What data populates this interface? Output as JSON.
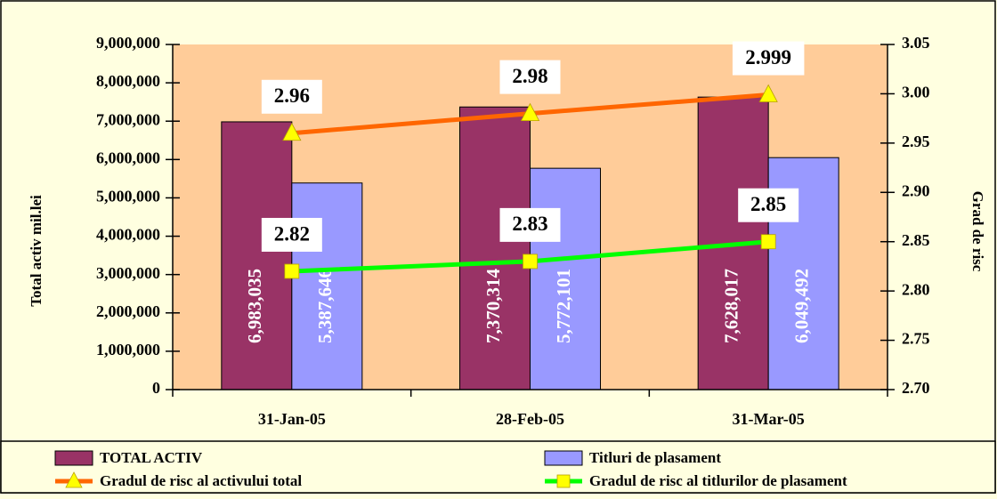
{
  "chart_data": {
    "type": "bar",
    "categories": [
      "31-Jan-05",
      "28-Feb-05",
      "31-Mar-05"
    ],
    "series": [
      {
        "name": "TOTAL ACTIV",
        "kind": "bar",
        "axis": "left",
        "values": [
          6983035,
          7370314,
          7628017
        ],
        "labels": [
          "6,983,035",
          "7,370,314",
          "7,628,017"
        ],
        "color": "#993366"
      },
      {
        "name": "Titluri de plasament",
        "kind": "bar",
        "axis": "left",
        "values": [
          5387646,
          5772101,
          6049492
        ],
        "labels": [
          "5,387,646",
          "5,772,101",
          "6,049,492"
        ],
        "color": "#9999ff"
      },
      {
        "name": "Gradul de risc al activului total",
        "kind": "line",
        "axis": "right",
        "values": [
          2.96,
          2.98,
          2.999
        ],
        "labels": [
          "2.96",
          "2.98",
          "2.999"
        ],
        "color": "#ff6600",
        "marker": "triangle",
        "marker_color": "#ffff00"
      },
      {
        "name": "Gradul de risc al titlurilor de plasament",
        "kind": "line",
        "axis": "right",
        "values": [
          2.82,
          2.83,
          2.85
        ],
        "labels": [
          "2.82",
          "2.83",
          "2.85"
        ],
        "color": "#00ff00",
        "marker": "square",
        "marker_color": "#ffff00"
      }
    ],
    "ylabel": "Total activ mil.lei",
    "y2label": "Grad de risc",
    "ylim": [
      0,
      9000000
    ],
    "y2lim": [
      2.7,
      3.05
    ],
    "yticks": [
      "0",
      "1,000,000",
      "2,000,000",
      "3,000,000",
      "4,000,000",
      "5,000,000",
      "6,000,000",
      "7,000,000",
      "8,000,000",
      "9,000,000"
    ],
    "y2ticks": [
      "2.70",
      "2.75",
      "2.80",
      "2.85",
      "2.90",
      "2.95",
      "3.00",
      "3.05"
    ],
    "grid": false,
    "legend_position": "bottom",
    "plot_background": "#ffcc99",
    "chart_background": "#ffffe0"
  }
}
